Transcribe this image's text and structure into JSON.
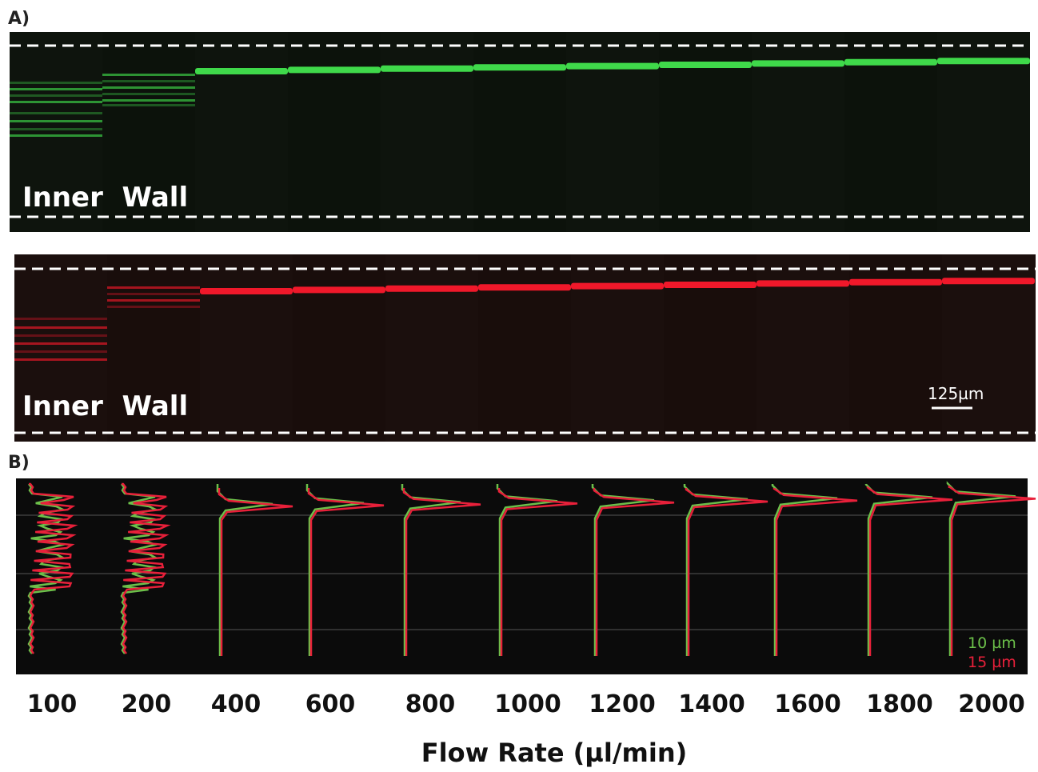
{
  "panel_a": {
    "label": "A)",
    "green_image": {
      "label": "Inner  Wall"
    },
    "red_image": {
      "label": "Inner  Wall",
      "scale_bar": "125µm"
    }
  },
  "panel_b": {
    "label": "B)",
    "legend": [
      "10 µm",
      "15 µm"
    ],
    "flow_rates": [
      100,
      200,
      400,
      600,
      800,
      1000,
      1200,
      1400,
      1600,
      1800,
      2000
    ],
    "x_axis_title": "Flow Rate (µl/min)"
  }
}
